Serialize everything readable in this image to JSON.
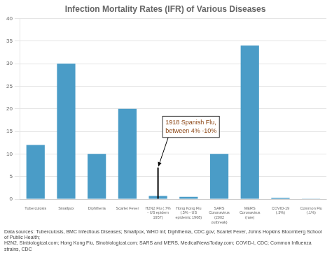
{
  "chart_data": {
    "type": "bar",
    "title": "Infection Mortality Rates (IFR) of Various Diseases",
    "categories": [
      "Tuberculosis",
      "Smallpox",
      "Diphtheria",
      "Scarlet Fever",
      "H2N2 Flu (.7%\n- US epidem\n1957)",
      "Hong Kong Flu\n(.5% - US\nepidemic 1968)",
      "SARS\nCoronavirus\n(2002\noutbreak)",
      "MERS\nCoronavirus\n(rare)",
      "COVID-19\n(.3%)",
      "Common Flu\n(.1%)"
    ],
    "values": [
      12,
      30,
      10,
      20,
      0.7,
      0.5,
      10,
      34,
      0.3,
      0.1
    ],
    "color": "#4A9CC7",
    "ylim": [
      0,
      40
    ],
    "yticks": [
      0,
      5,
      10,
      15,
      20,
      25,
      30,
      35,
      40
    ],
    "grid": true,
    "annotations": [
      {
        "text": "1918 Spanish Flu,\nbetween 4% -10%",
        "category": "H2N2 Flu (.7%\n- US epidem\n1957)",
        "y": 7,
        "color": "#8B4513"
      }
    ],
    "caption": [
      "Data sources: Tuberculosis, BMC Infectious Diseases; Smallpox, WHO int; Diphthenia, CDC.gov; Scarlet Fever, Johns Hopkins Bloomberg School of Public Health;",
      "H2N2, Sinbiological.com; Hong Kong Flu, Sinobiological.com; SARS and MERS, MedicalNewsToday.com; COVID-I, CDC; Common Influenza strains, CDC"
    ]
  }
}
